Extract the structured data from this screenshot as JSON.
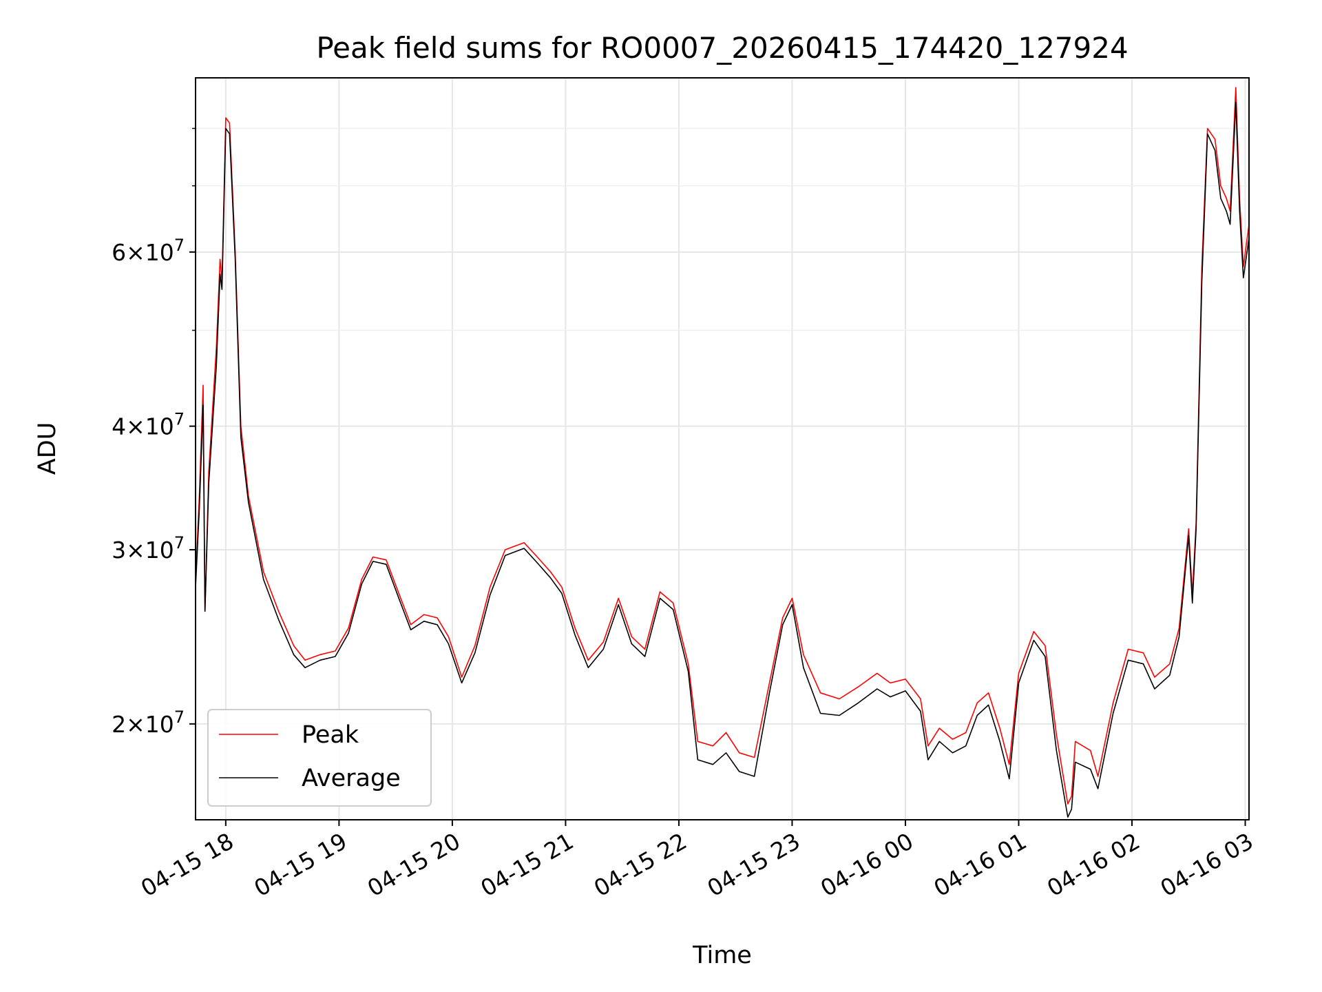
{
  "chart_data": {
    "type": "line",
    "title": "Peak field sums for RO0007_20260415_174420_127924",
    "xlabel": "Time",
    "ylabel": "ADU",
    "yscale": "log",
    "xlim": [
      "2026-04-15 17:44",
      "2026-04-16 03:02"
    ],
    "ylim": [
      16000000,
      90000000
    ],
    "grid": true,
    "legend_position": "lower-left",
    "x_ticks": [
      {
        "value": "2026-04-15 18:00",
        "label": "04-15 18"
      },
      {
        "value": "2026-04-15 19:00",
        "label": "04-15 19"
      },
      {
        "value": "2026-04-15 20:00",
        "label": "04-15 20"
      },
      {
        "value": "2026-04-15 21:00",
        "label": "04-15 21"
      },
      {
        "value": "2026-04-15 22:00",
        "label": "04-15 22"
      },
      {
        "value": "2026-04-15 23:00",
        "label": "04-15 23"
      },
      {
        "value": "2026-04-16 00:00",
        "label": "04-16 00"
      },
      {
        "value": "2026-04-16 01:00",
        "label": "04-16 01"
      },
      {
        "value": "2026-04-16 02:00",
        "label": "04-16 02"
      },
      {
        "value": "2026-04-16 03:00",
        "label": "04-16 03"
      }
    ],
    "y_ticks_major": [
      {
        "value": 20000000,
        "mantissa": "2",
        "exp": "7"
      },
      {
        "value": 30000000,
        "mantissa": "3",
        "exp": "7"
      },
      {
        "value": 40000000,
        "mantissa": "4",
        "exp": "7"
      },
      {
        "value": 60000000,
        "mantissa": "6",
        "exp": "7"
      }
    ],
    "y_ticks_minor": [
      50000000,
      70000000,
      80000000
    ],
    "series": [
      {
        "name": "Peak",
        "color": "#ff0000",
        "points": [
          [
            "2026-04-15 17:44",
            28000000
          ],
          [
            "2026-04-15 17:46",
            34000000
          ],
          [
            "2026-04-15 17:48",
            44000000
          ],
          [
            "2026-04-15 17:49",
            26000000
          ],
          [
            "2026-04-15 17:51",
            36000000
          ],
          [
            "2026-04-15 17:55",
            48000000
          ],
          [
            "2026-04-15 17:57",
            59000000
          ],
          [
            "2026-04-15 17:58",
            56000000
          ],
          [
            "2026-04-15 18:00",
            82000000
          ],
          [
            "2026-04-15 18:02",
            81000000
          ],
          [
            "2026-04-15 18:05",
            60000000
          ],
          [
            "2026-04-15 18:08",
            40000000
          ],
          [
            "2026-04-15 18:12",
            34000000
          ],
          [
            "2026-04-15 18:20",
            28500000
          ],
          [
            "2026-04-15 18:28",
            26000000
          ],
          [
            "2026-04-15 18:36",
            24000000
          ],
          [
            "2026-04-15 18:42",
            23200000
          ],
          [
            "2026-04-15 18:50",
            23500000
          ],
          [
            "2026-04-15 18:58",
            23700000
          ],
          [
            "2026-04-15 19:05",
            25000000
          ],
          [
            "2026-04-15 19:12",
            28000000
          ],
          [
            "2026-04-15 19:18",
            29500000
          ],
          [
            "2026-04-15 19:25",
            29300000
          ],
          [
            "2026-04-15 19:32",
            27000000
          ],
          [
            "2026-04-15 19:38",
            25200000
          ],
          [
            "2026-04-15 19:45",
            25800000
          ],
          [
            "2026-04-15 19:52",
            25600000
          ],
          [
            "2026-04-15 19:58",
            24500000
          ],
          [
            "2026-04-15 20:05",
            22300000
          ],
          [
            "2026-04-15 20:12",
            24000000
          ],
          [
            "2026-04-15 20:20",
            27500000
          ],
          [
            "2026-04-15 20:28",
            30000000
          ],
          [
            "2026-04-15 20:38",
            30500000
          ],
          [
            "2026-04-15 20:45",
            29500000
          ],
          [
            "2026-04-15 20:52",
            28500000
          ],
          [
            "2026-04-15 20:58",
            27500000
          ],
          [
            "2026-04-15 21:05",
            25000000
          ],
          [
            "2026-04-15 21:12",
            23200000
          ],
          [
            "2026-04-15 21:20",
            24200000
          ],
          [
            "2026-04-15 21:28",
            26800000
          ],
          [
            "2026-04-15 21:35",
            24500000
          ],
          [
            "2026-04-15 21:42",
            23800000
          ],
          [
            "2026-04-15 21:50",
            27200000
          ],
          [
            "2026-04-15 21:57",
            26500000
          ],
          [
            "2026-04-15 22:05",
            23000000
          ],
          [
            "2026-04-15 22:10",
            19200000
          ],
          [
            "2026-04-15 22:18",
            19000000
          ],
          [
            "2026-04-15 22:25",
            19600000
          ],
          [
            "2026-04-15 22:32",
            18700000
          ],
          [
            "2026-04-15 22:40",
            18500000
          ],
          [
            "2026-04-15 22:48",
            22000000
          ],
          [
            "2026-04-15 22:55",
            25600000
          ],
          [
            "2026-04-15 23:00",
            26800000
          ],
          [
            "2026-04-15 23:06",
            23500000
          ],
          [
            "2026-04-15 23:15",
            21500000
          ],
          [
            "2026-04-15 23:25",
            21200000
          ],
          [
            "2026-04-15 23:35",
            21800000
          ],
          [
            "2026-04-15 23:45",
            22500000
          ],
          [
            "2026-04-15 23:52",
            22000000
          ],
          [
            "2026-04-16 00:00",
            22200000
          ],
          [
            "2026-04-16 00:08",
            21200000
          ],
          [
            "2026-04-16 00:12",
            19000000
          ],
          [
            "2026-04-16 00:18",
            19800000
          ],
          [
            "2026-04-16 00:25",
            19300000
          ],
          [
            "2026-04-16 00:32",
            19600000
          ],
          [
            "2026-04-16 00:38",
            21000000
          ],
          [
            "2026-04-16 00:44",
            21500000
          ],
          [
            "2026-04-16 00:50",
            19800000
          ],
          [
            "2026-04-16 00:55",
            18200000
          ],
          [
            "2026-04-16 01:00",
            22500000
          ],
          [
            "2026-04-16 01:08",
            24800000
          ],
          [
            "2026-04-16 01:14",
            24000000
          ],
          [
            "2026-04-16 01:20",
            19500000
          ],
          [
            "2026-04-16 01:26",
            16600000
          ],
          [
            "2026-04-16 01:28",
            16900000
          ],
          [
            "2026-04-16 01:30",
            19200000
          ],
          [
            "2026-04-16 01:38",
            18800000
          ],
          [
            "2026-04-16 01:42",
            17700000
          ],
          [
            "2026-04-16 01:50",
            21000000
          ],
          [
            "2026-04-16 01:58",
            23800000
          ],
          [
            "2026-04-16 02:06",
            23600000
          ],
          [
            "2026-04-16 02:12",
            22300000
          ],
          [
            "2026-04-16 02:20",
            23000000
          ],
          [
            "2026-04-16 02:25",
            25000000
          ],
          [
            "2026-04-16 02:30",
            31500000
          ],
          [
            "2026-04-16 02:32",
            27000000
          ],
          [
            "2026-04-16 02:34",
            32000000
          ],
          [
            "2026-04-16 02:37",
            58000000
          ],
          [
            "2026-04-16 02:40",
            80000000
          ],
          [
            "2026-04-16 02:44",
            78000000
          ],
          [
            "2026-04-16 02:47",
            70000000
          ],
          [
            "2026-04-16 02:50",
            68000000
          ],
          [
            "2026-04-16 02:52",
            66000000
          ],
          [
            "2026-04-16 02:55",
            88000000
          ],
          [
            "2026-04-16 02:57",
            68000000
          ],
          [
            "2026-04-16 02:59",
            58000000
          ],
          [
            "2026-04-16 03:02",
            64000000
          ]
        ]
      },
      {
        "name": "Average",
        "color": "#000000",
        "points": [
          [
            "2026-04-15 17:44",
            27500000
          ],
          [
            "2026-04-15 17:46",
            33000000
          ],
          [
            "2026-04-15 17:48",
            42000000
          ],
          [
            "2026-04-15 17:49",
            26000000
          ],
          [
            "2026-04-15 17:51",
            35000000
          ],
          [
            "2026-04-15 17:55",
            46000000
          ],
          [
            "2026-04-15 17:57",
            57000000
          ],
          [
            "2026-04-15 17:58",
            55000000
          ],
          [
            "2026-04-15 18:00",
            80000000
          ],
          [
            "2026-04-15 18:02",
            79000000
          ],
          [
            "2026-04-15 18:05",
            59000000
          ],
          [
            "2026-04-15 18:08",
            39000000
          ],
          [
            "2026-04-15 18:12",
            33500000
          ],
          [
            "2026-04-15 18:20",
            28000000
          ],
          [
            "2026-04-15 18:28",
            25500000
          ],
          [
            "2026-04-15 18:36",
            23500000
          ],
          [
            "2026-04-15 18:42",
            22800000
          ],
          [
            "2026-04-15 18:50",
            23200000
          ],
          [
            "2026-04-15 18:58",
            23400000
          ],
          [
            "2026-04-15 19:05",
            24700000
          ],
          [
            "2026-04-15 19:12",
            27700000
          ],
          [
            "2026-04-15 19:18",
            29200000
          ],
          [
            "2026-04-15 19:25",
            29000000
          ],
          [
            "2026-04-15 19:32",
            26700000
          ],
          [
            "2026-04-15 19:38",
            24900000
          ],
          [
            "2026-04-15 19:45",
            25400000
          ],
          [
            "2026-04-15 19:52",
            25200000
          ],
          [
            "2026-04-15 19:58",
            24100000
          ],
          [
            "2026-04-15 20:05",
            22000000
          ],
          [
            "2026-04-15 20:12",
            23600000
          ],
          [
            "2026-04-15 20:20",
            27000000
          ],
          [
            "2026-04-15 20:28",
            29600000
          ],
          [
            "2026-04-15 20:38",
            30100000
          ],
          [
            "2026-04-15 20:45",
            29100000
          ],
          [
            "2026-04-15 20:52",
            28100000
          ],
          [
            "2026-04-15 20:58",
            27100000
          ],
          [
            "2026-04-15 21:05",
            24600000
          ],
          [
            "2026-04-15 21:12",
            22800000
          ],
          [
            "2026-04-15 21:20",
            23800000
          ],
          [
            "2026-04-15 21:28",
            26400000
          ],
          [
            "2026-04-15 21:35",
            24100000
          ],
          [
            "2026-04-15 21:42",
            23400000
          ],
          [
            "2026-04-15 21:50",
            26800000
          ],
          [
            "2026-04-15 21:57",
            26100000
          ],
          [
            "2026-04-15 22:05",
            22600000
          ],
          [
            "2026-04-15 22:10",
            18400000
          ],
          [
            "2026-04-15 22:18",
            18200000
          ],
          [
            "2026-04-15 22:25",
            18700000
          ],
          [
            "2026-04-15 22:32",
            17900000
          ],
          [
            "2026-04-15 22:40",
            17700000
          ],
          [
            "2026-04-15 22:48",
            21500000
          ],
          [
            "2026-04-15 22:55",
            25200000
          ],
          [
            "2026-04-15 23:00",
            26400000
          ],
          [
            "2026-04-15 23:06",
            22800000
          ],
          [
            "2026-04-15 23:15",
            20500000
          ],
          [
            "2026-04-15 23:25",
            20400000
          ],
          [
            "2026-04-15 23:35",
            21000000
          ],
          [
            "2026-04-15 23:45",
            21700000
          ],
          [
            "2026-04-15 23:52",
            21300000
          ],
          [
            "2026-04-16 00:00",
            21600000
          ],
          [
            "2026-04-16 00:08",
            20600000
          ],
          [
            "2026-04-16 00:12",
            18400000
          ],
          [
            "2026-04-16 00:18",
            19200000
          ],
          [
            "2026-04-16 00:25",
            18700000
          ],
          [
            "2026-04-16 00:32",
            19000000
          ],
          [
            "2026-04-16 00:38",
            20400000
          ],
          [
            "2026-04-16 00:44",
            20900000
          ],
          [
            "2026-04-16 00:50",
            19200000
          ],
          [
            "2026-04-16 00:55",
            17600000
          ],
          [
            "2026-04-16 01:00",
            22000000
          ],
          [
            "2026-04-16 01:08",
            24300000
          ],
          [
            "2026-04-16 01:14",
            23400000
          ],
          [
            "2026-04-16 01:20",
            18800000
          ],
          [
            "2026-04-16 01:26",
            16100000
          ],
          [
            "2026-04-16 01:28",
            16400000
          ],
          [
            "2026-04-16 01:30",
            18300000
          ],
          [
            "2026-04-16 01:38",
            18000000
          ],
          [
            "2026-04-16 01:42",
            17200000
          ],
          [
            "2026-04-16 01:50",
            20500000
          ],
          [
            "2026-04-16 01:58",
            23200000
          ],
          [
            "2026-04-16 02:06",
            23000000
          ],
          [
            "2026-04-16 02:12",
            21700000
          ],
          [
            "2026-04-16 02:20",
            22400000
          ],
          [
            "2026-04-16 02:25",
            24500000
          ],
          [
            "2026-04-16 02:30",
            31000000
          ],
          [
            "2026-04-16 02:32",
            26500000
          ],
          [
            "2026-04-16 02:34",
            31500000
          ],
          [
            "2026-04-16 02:37",
            56000000
          ],
          [
            "2026-04-16 02:40",
            79000000
          ],
          [
            "2026-04-16 02:44",
            76000000
          ],
          [
            "2026-04-16 02:47",
            68000000
          ],
          [
            "2026-04-16 02:50",
            66000000
          ],
          [
            "2026-04-16 02:52",
            64000000
          ],
          [
            "2026-04-16 02:55",
            85000000
          ],
          [
            "2026-04-16 02:57",
            66000000
          ],
          [
            "2026-04-16 02:59",
            56500000
          ],
          [
            "2026-04-16 03:02",
            62000000
          ]
        ]
      }
    ]
  }
}
